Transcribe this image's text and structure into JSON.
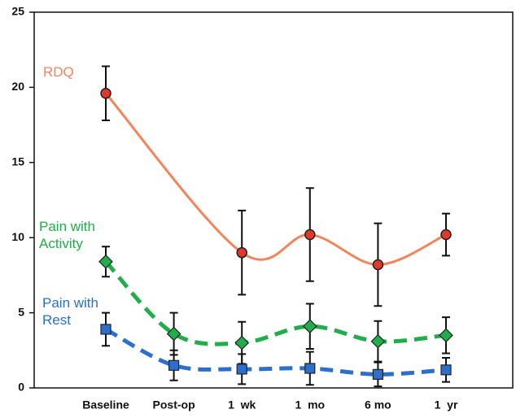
{
  "chart_data": {
    "type": "line",
    "categories": [
      "Baseline",
      "Post-op",
      "1  wk",
      "1  mo",
      "6 mo",
      "1  yr"
    ],
    "ylim": [
      0,
      25
    ],
    "yticks": [
      0,
      5,
      10,
      15,
      20,
      25
    ],
    "connect_gaps": true,
    "series": [
      {
        "name": "RDQ",
        "color": "#f4845a",
        "marker_color": "#e2382a",
        "marker": "circle",
        "dashed": false,
        "values": [
          19.6,
          null,
          9.0,
          10.2,
          8.2,
          10.2
        ],
        "errors": [
          1.8,
          null,
          2.8,
          3.1,
          2.75,
          1.4
        ]
      },
      {
        "name": "Pain with Activity",
        "color": "#1fae4a",
        "marker_color": "#1fae4a",
        "marker": "diamond",
        "dashed": true,
        "values": [
          8.4,
          3.6,
          3.0,
          4.1,
          3.1,
          3.5
        ],
        "errors": [
          1.0,
          1.4,
          1.4,
          1.5,
          1.35,
          1.2
        ]
      },
      {
        "name": "Pain with Rest",
        "color": "#2c6fcc",
        "marker_color": "#2c6fcc",
        "marker": "square",
        "dashed": true,
        "values": [
          3.9,
          1.5,
          1.25,
          1.3,
          0.9,
          1.2
        ],
        "errors": [
          1.1,
          1.0,
          1.0,
          1.1,
          0.8,
          0.8
        ]
      }
    ]
  }
}
